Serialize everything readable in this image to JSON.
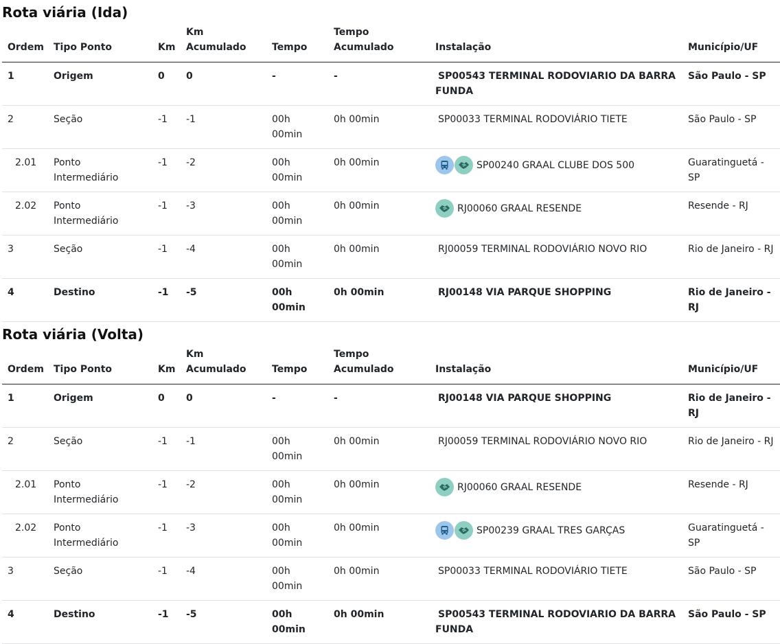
{
  "headers": {
    "ordem": "Ordem",
    "tipo": "Tipo Ponto",
    "km": "Km",
    "km_acum": [
      "Km",
      "Acumulado"
    ],
    "tempo": "Tempo",
    "tempo_acum": [
      "Tempo",
      "Acumulado"
    ],
    "instalacao": "Instalação",
    "municipio": "Município/UF"
  },
  "ida": {
    "title": "Rota viária (Ida)",
    "rows": [
      {
        "ordem": "1",
        "tipo": "Origem",
        "km": "0",
        "km_acum": "0",
        "tempo": "-",
        "tempo_acum": "-",
        "instalacao": "SP00543 TERMINAL RODOVIARIO DA BARRA FUNDA",
        "municipio": "São Paulo - SP",
        "bold": true
      },
      {
        "ordem": "2",
        "tipo": "Seção",
        "km": "-1",
        "km_acum": "-1",
        "tempo": "00h 00min",
        "tempo_acum": "0h 00min",
        "instalacao": "SP00033 TERMINAL RODOVIÁRIO TIETE",
        "municipio": "São Paulo - SP"
      },
      {
        "ordem": "2.01",
        "tipo": "Ponto Intermediário",
        "km": "-1",
        "km_acum": "-2",
        "tempo": "00h 00min",
        "tempo_acum": "0h 00min",
        "instalacao": "SP00240 GRAAL CLUBE DOS 500",
        "municipio": "Guaratinguetá - SP",
        "icons": [
          "bus-icon",
          "handshake-icon"
        ]
      },
      {
        "ordem": "2.02",
        "tipo": "Ponto Intermediário",
        "km": "-1",
        "km_acum": "-3",
        "tempo": "00h 00min",
        "tempo_acum": "0h 00min",
        "instalacao": "RJ00060 GRAAL RESENDE",
        "municipio": "Resende - RJ",
        "icons": [
          "handshake-icon"
        ]
      },
      {
        "ordem": "3",
        "tipo": "Seção",
        "km": "-1",
        "km_acum": "-4",
        "tempo": "00h 00min",
        "tempo_acum": "0h 00min",
        "instalacao": "RJ00059 TERMINAL RODOVIÁRIO NOVO RIO",
        "municipio": "Rio de Janeiro - RJ"
      },
      {
        "ordem": "4",
        "tipo": "Destino",
        "km": "-1",
        "km_acum": "-5",
        "tempo": "00h 00min",
        "tempo_acum": "0h 00min",
        "instalacao": "RJ00148 VIA PARQUE SHOPPING",
        "municipio": "Rio de Janeiro - RJ",
        "bold": true
      }
    ]
  },
  "volta": {
    "title": "Rota viária (Volta)",
    "rows": [
      {
        "ordem": "1",
        "tipo": "Origem",
        "km": "0",
        "km_acum": "0",
        "tempo": "-",
        "tempo_acum": "-",
        "instalacao": "RJ00148 VIA PARQUE SHOPPING",
        "municipio": "Rio de Janeiro - RJ",
        "bold": true
      },
      {
        "ordem": "2",
        "tipo": "Seção",
        "km": "-1",
        "km_acum": "-1",
        "tempo": "00h 00min",
        "tempo_acum": "0h 00min",
        "instalacao": "RJ00059 TERMINAL RODOVIÁRIO NOVO RIO",
        "municipio": "Rio de Janeiro - RJ"
      },
      {
        "ordem": "2.01",
        "tipo": "Ponto Intermediário",
        "km": "-1",
        "km_acum": "-2",
        "tempo": "00h 00min",
        "tempo_acum": "0h 00min",
        "instalacao": "RJ00060 GRAAL RESENDE",
        "municipio": "Resende - RJ",
        "icons": [
          "handshake-icon"
        ]
      },
      {
        "ordem": "2.02",
        "tipo": "Ponto Intermediário",
        "km": "-1",
        "km_acum": "-3",
        "tempo": "00h 00min",
        "tempo_acum": "0h 00min",
        "instalacao": "SP00239 GRAAL TRES GARÇAS",
        "municipio": "Guaratinguetá - SP",
        "icons": [
          "bus-icon",
          "handshake-icon"
        ]
      },
      {
        "ordem": "3",
        "tipo": "Seção",
        "km": "-1",
        "km_acum": "-4",
        "tempo": "00h 00min",
        "tempo_acum": "0h 00min",
        "instalacao": "SP00033 TERMINAL RODOVIÁRIO TIETE",
        "municipio": "São Paulo - SP"
      },
      {
        "ordem": "4",
        "tipo": "Destino",
        "km": "-1",
        "km_acum": "-5",
        "tempo": "00h 00min",
        "tempo_acum": "0h 00min",
        "instalacao": "SP00543 TERMINAL RODOVIARIO DA BARRA FUNDA",
        "municipio": "São Paulo - SP",
        "bold": true
      }
    ]
  },
  "colors": {
    "bus_icon_bg": "#9ec6ea",
    "handshake_icon_bg": "#8ecfc2",
    "header_rule": "#212529",
    "row_rule": "#dee2e6"
  }
}
